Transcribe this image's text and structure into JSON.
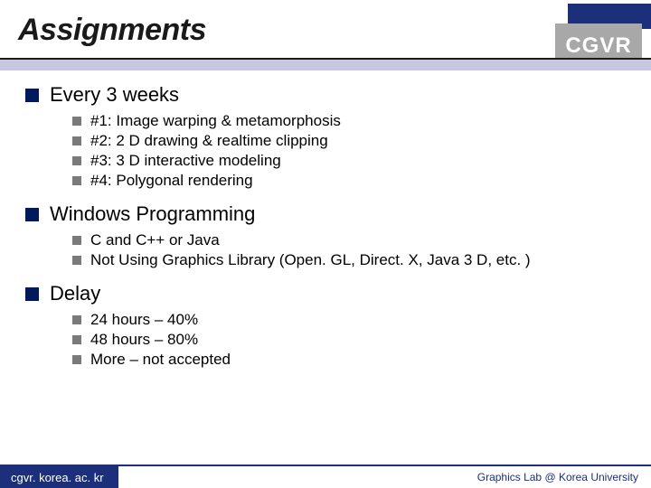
{
  "title": "Assignments",
  "logo": "CGVR",
  "colors": {
    "dark_blue": "#1b2f7a",
    "underline_fill": "#c7c7e0",
    "bullet_gray": "#7a7a7a",
    "cgvr_gray": "#a8a8a8"
  },
  "sections": [
    {
      "heading": "Every 3 weeks",
      "items": [
        "#1: Image warping & metamorphosis",
        "#2: 2 D drawing & realtime clipping",
        "#3: 3 D interactive modeling",
        "#4: Polygonal rendering"
      ]
    },
    {
      "heading": "Windows Programming",
      "items": [
        "C and C++ or Java",
        "Not Using Graphics Library (Open. GL, Direct. X, Java 3 D, etc. )"
      ]
    },
    {
      "heading": "Delay",
      "items": [
        "24 hours – 40%",
        "48 hours – 80%",
        "More – not accepted"
      ]
    }
  ],
  "footer": {
    "left": "cgvr. korea. ac. kr",
    "right": "Graphics Lab @ Korea University"
  }
}
